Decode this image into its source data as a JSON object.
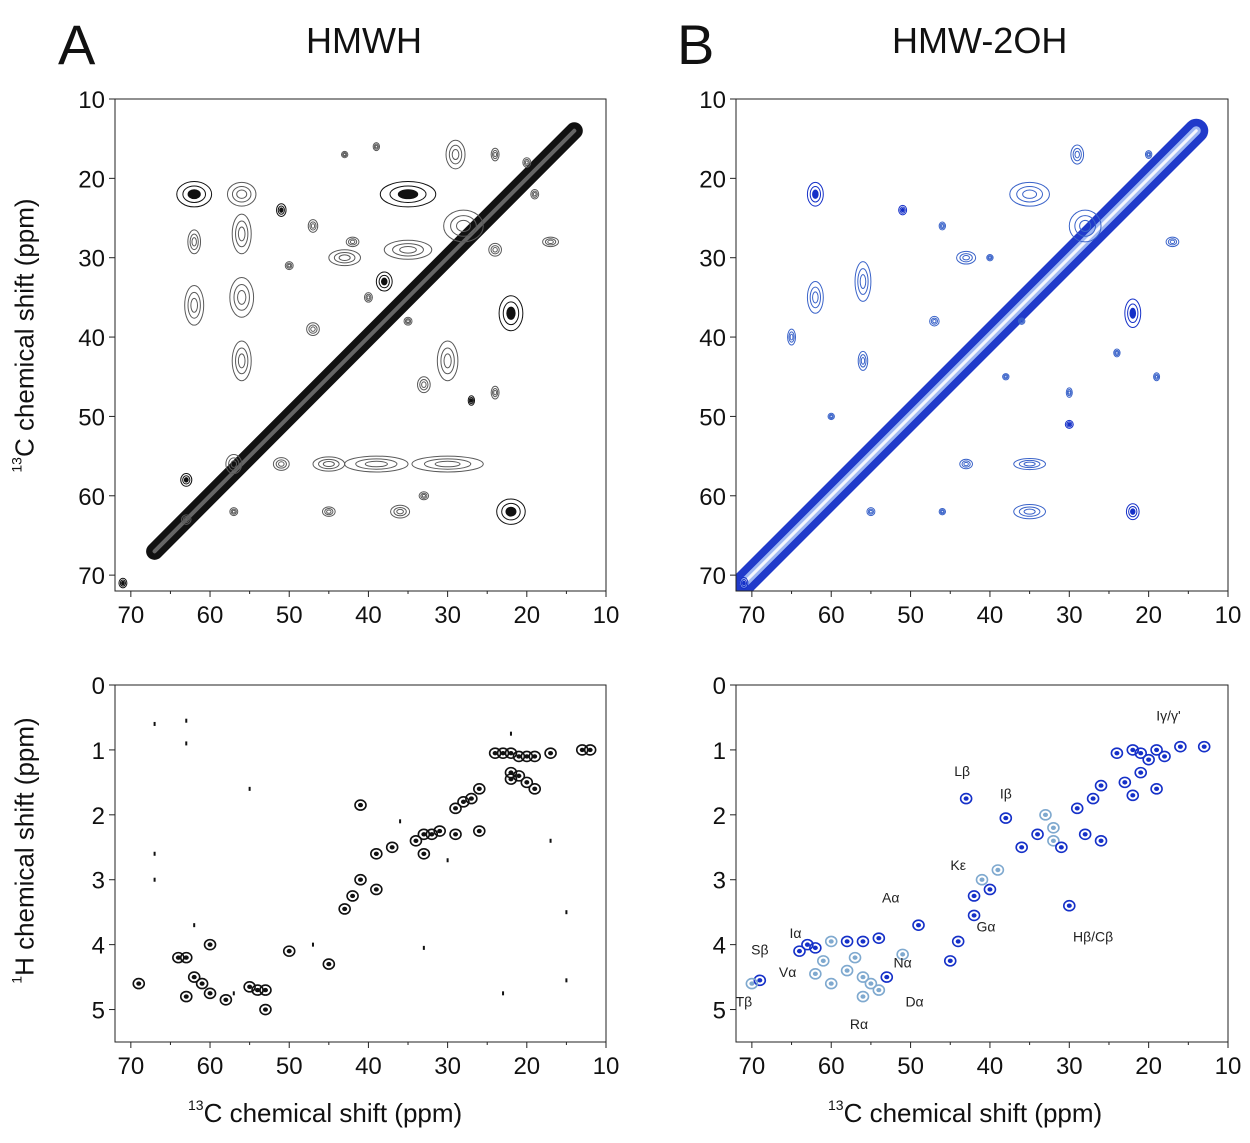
{
  "figure": {
    "panel_a": {
      "letter": "A",
      "title": "HMWH"
    },
    "panel_b": {
      "letter": "B",
      "title": "HMW-2OH"
    },
    "y_label_top": {
      "sup": "13",
      "text": "C chemical shift (ppm)"
    },
    "y_label_bottom": {
      "sup": "1",
      "text": "H chemical shift (ppm)"
    },
    "x_label_left": {
      "sup": "13",
      "text": "C chemical shift (ppm)"
    },
    "x_label_right": {
      "sup": "13",
      "text": "C chemical shift (ppm)"
    }
  },
  "colors": {
    "black": "#111111",
    "grey": "#5a5a5a",
    "blue_dark": "#1530c8",
    "blue_mid": "#3a63c9",
    "blue_light": "#7fa9cf"
  },
  "chart_data": [
    {
      "id": "cc_hmwh",
      "type": "heatmap",
      "title": "HMWH",
      "color": "black",
      "xlabel": "13C chemical shift (ppm)",
      "ylabel": "13C chemical shift (ppm)",
      "xlim": [
        72,
        10
      ],
      "ylim": [
        10,
        72
      ],
      "x_ticks": [
        70,
        60,
        50,
        40,
        30,
        20,
        10
      ],
      "y_ticks": [
        10,
        20,
        30,
        40,
        50,
        60,
        70
      ],
      "diagonal": [
        [
          67,
          67
        ],
        [
          14,
          14
        ]
      ],
      "peaks": [
        [
          62,
          22,
          2.2,
          1.6,
          0.9
        ],
        [
          56,
          22,
          1.8,
          1.5,
          0.5
        ],
        [
          56,
          27,
          1.2,
          2.5,
          0.5
        ],
        [
          56,
          35,
          1.5,
          2.5,
          0.5
        ],
        [
          56,
          43,
          1.2,
          2.5,
          0.5
        ],
        [
          62,
          36,
          1.2,
          2.5,
          0.5
        ],
        [
          62,
          28,
          0.8,
          1.5,
          0.4
        ],
        [
          51,
          24,
          0.6,
          0.8,
          0.8
        ],
        [
          35,
          22,
          3.5,
          1.6,
          0.9
        ],
        [
          35,
          29,
          3.0,
          1.2,
          0.5
        ],
        [
          29,
          17,
          1.2,
          1.8,
          0.5
        ],
        [
          28,
          26,
          2.5,
          2,
          0.6
        ],
        [
          22,
          37,
          1.5,
          2.2,
          0.8
        ],
        [
          22,
          62,
          1.8,
          1.6,
          0.9
        ],
        [
          30,
          56,
          4.5,
          1.0,
          0.5
        ],
        [
          39,
          56,
          4.0,
          1.0,
          0.5
        ],
        [
          45,
          56,
          2.0,
          0.9,
          0.5
        ],
        [
          51,
          56,
          1.0,
          0.8,
          0.6
        ],
        [
          57,
          56,
          1.0,
          1.2,
          0.5
        ],
        [
          38,
          33,
          1.0,
          1.2,
          0.8
        ],
        [
          43,
          30,
          2.0,
          1.0,
          0.5
        ],
        [
          30,
          43,
          1.3,
          2.5,
          0.5
        ],
        [
          33,
          46,
          0.8,
          1.0,
          0.5
        ],
        [
          39,
          16,
          0.4,
          0.5,
          0.6
        ],
        [
          43,
          17,
          0.4,
          0.4,
          0.6
        ],
        [
          24,
          17,
          0.5,
          0.8,
          0.6
        ],
        [
          20,
          18,
          0.5,
          0.6,
          0.6
        ],
        [
          17,
          28,
          1.0,
          0.6,
          0.5
        ],
        [
          24,
          29,
          0.8,
          0.8,
          0.5
        ],
        [
          27,
          48,
          0.4,
          0.6,
          0.8
        ],
        [
          24,
          47,
          0.5,
          0.8,
          0.6
        ],
        [
          36,
          62,
          1.2,
          0.8,
          0.5
        ],
        [
          45,
          62,
          0.8,
          0.6,
          0.5
        ],
        [
          47,
          39,
          0.8,
          0.8,
          0.5
        ],
        [
          50,
          31,
          0.5,
          0.5,
          0.5
        ],
        [
          35,
          38,
          0.5,
          0.5,
          0.5
        ],
        [
          63,
          58,
          0.7,
          0.8,
          0.8
        ],
        [
          63,
          63,
          0.6,
          0.6,
          0.7
        ],
        [
          57,
          62,
          0.5,
          0.5,
          0.6
        ],
        [
          47,
          26,
          0.6,
          0.8,
          0.6
        ],
        [
          42,
          28,
          0.8,
          0.6,
          0.6
        ],
        [
          19,
          22,
          0.5,
          0.6,
          0.5
        ],
        [
          71,
          71,
          0.5,
          0.6,
          0.8
        ],
        [
          40,
          35,
          0.5,
          0.6,
          0.5
        ],
        [
          33,
          60,
          0.6,
          0.5,
          0.5
        ]
      ]
    },
    {
      "id": "cc_hmw2oh",
      "type": "heatmap",
      "title": "HMW-2OH",
      "color": "blue",
      "xlabel": "13C chemical shift (ppm)",
      "ylabel": "13C chemical shift (ppm)",
      "xlim": [
        72,
        10
      ],
      "ylim": [
        10,
        72
      ],
      "x_ticks": [
        70,
        60,
        50,
        40,
        30,
        20,
        10
      ],
      "y_ticks": [
        10,
        20,
        30,
        40,
        50,
        60,
        70
      ],
      "diagonal": [
        [
          71,
          71
        ],
        [
          14,
          14
        ]
      ],
      "peaks": [
        [
          62,
          22,
          1.0,
          1.5,
          0.8
        ],
        [
          62,
          35,
          1.0,
          2.0,
          0.7
        ],
        [
          56,
          33,
          1.0,
          2.5,
          0.5
        ],
        [
          56,
          43,
          0.6,
          1.2,
          0.5
        ],
        [
          51,
          24,
          0.5,
          0.6,
          0.8
        ],
        [
          35,
          22,
          2.5,
          1.5,
          0.7
        ],
        [
          28,
          26,
          2.0,
          2.0,
          0.5
        ],
        [
          29,
          17,
          0.8,
          1.2,
          0.5
        ],
        [
          22,
          37,
          1.0,
          1.8,
          0.8
        ],
        [
          22,
          62,
          0.8,
          1.0,
          0.8
        ],
        [
          35,
          56,
          2.0,
          0.7,
          0.5
        ],
        [
          35,
          62,
          2.0,
          0.9,
          0.7
        ],
        [
          43,
          56,
          0.8,
          0.6,
          0.5
        ],
        [
          30,
          51,
          0.5,
          0.5,
          0.8
        ],
        [
          17,
          28,
          0.8,
          0.6,
          0.5
        ],
        [
          19,
          45,
          0.3,
          0.5,
          0.6
        ],
        [
          30,
          47,
          0.3,
          0.6,
          0.6
        ],
        [
          43,
          30,
          1.2,
          0.8,
          0.5
        ],
        [
          47,
          38,
          0.6,
          0.6,
          0.5
        ],
        [
          24,
          42,
          0.4,
          0.5,
          0.5
        ],
        [
          55,
          62,
          0.5,
          0.5,
          0.5
        ],
        [
          46,
          62,
          0.4,
          0.4,
          0.5
        ],
        [
          36,
          38,
          0.4,
          0.4,
          0.5
        ],
        [
          38,
          45,
          0.4,
          0.4,
          0.5
        ],
        [
          60,
          50,
          0.4,
          0.4,
          0.4
        ],
        [
          65,
          40,
          0.5,
          1.0,
          0.5
        ],
        [
          46,
          26,
          0.4,
          0.5,
          0.6
        ],
        [
          40,
          30,
          0.4,
          0.4,
          0.5
        ],
        [
          71,
          71,
          0.5,
          0.7,
          0.8
        ],
        [
          20,
          17,
          0.4,
          0.5,
          0.5
        ]
      ]
    },
    {
      "id": "ch_hmwh",
      "type": "heatmap",
      "color": "black",
      "xlabel": "13C chemical shift (ppm)",
      "ylabel": "1H chemical shift (ppm)",
      "xlim": [
        72,
        10
      ],
      "ylim": [
        0,
        5.5
      ],
      "x_ticks": [
        70,
        60,
        50,
        40,
        30,
        20,
        10
      ],
      "y_ticks": [
        0,
        1,
        2,
        3,
        4,
        5
      ],
      "peaks": [
        [
          69,
          4.6
        ],
        [
          64,
          4.2
        ],
        [
          63,
          4.2
        ],
        [
          60,
          4.0
        ],
        [
          62,
          4.5
        ],
        [
          61,
          4.6
        ],
        [
          63,
          4.8
        ],
        [
          60,
          4.75
        ],
        [
          58,
          4.85
        ],
        [
          55,
          4.65
        ],
        [
          54,
          4.7
        ],
        [
          53,
          4.7
        ],
        [
          53,
          5.0
        ],
        [
          50,
          4.1
        ],
        [
          45,
          4.3
        ],
        [
          43,
          3.45
        ],
        [
          42,
          3.25
        ],
        [
          41,
          3.0
        ],
        [
          39,
          3.15
        ],
        [
          41,
          1.85
        ],
        [
          39,
          2.6
        ],
        [
          37,
          2.5
        ],
        [
          34,
          2.4
        ],
        [
          33,
          2.3
        ],
        [
          33,
          2.6
        ],
        [
          32,
          2.3
        ],
        [
          31,
          2.25
        ],
        [
          29,
          1.9
        ],
        [
          29,
          2.3
        ],
        [
          28,
          1.8
        ],
        [
          27,
          1.75
        ],
        [
          26,
          1.6
        ],
        [
          26,
          2.25
        ],
        [
          24,
          1.05
        ],
        [
          23,
          1.05
        ],
        [
          22,
          1.05
        ],
        [
          21,
          1.1
        ],
        [
          20,
          1.1
        ],
        [
          19,
          1.1
        ],
        [
          17,
          1.05
        ],
        [
          13,
          1.0
        ],
        [
          12,
          1.0
        ],
        [
          21,
          1.4
        ],
        [
          20,
          1.5
        ],
        [
          19,
          1.6
        ],
        [
          22,
          1.35
        ],
        [
          22,
          1.45
        ]
      ],
      "specks": [
        [
          67,
          0.6
        ],
        [
          63,
          0.55
        ],
        [
          63,
          0.9
        ],
        [
          67,
          2.6
        ],
        [
          67,
          3.0
        ],
        [
          55,
          1.6
        ],
        [
          36,
          2.1
        ],
        [
          30,
          2.7
        ],
        [
          22,
          0.75
        ],
        [
          17,
          2.4
        ],
        [
          15,
          3.5
        ],
        [
          15,
          4.55
        ],
        [
          23,
          4.75
        ],
        [
          47,
          4.0
        ],
        [
          33,
          4.05
        ],
        [
          62,
          3.7
        ],
        [
          57,
          4.75
        ]
      ]
    },
    {
      "id": "ch_hmw2oh",
      "type": "heatmap",
      "color": "blue",
      "xlabel": "13C chemical shift (ppm)",
      "ylabel": "1H chemical shift (ppm)",
      "xlim": [
        72,
        10
      ],
      "ylim": [
        0,
        5.5
      ],
      "x_ticks": [
        70,
        60,
        50,
        40,
        30,
        20,
        10
      ],
      "y_ticks": [
        0,
        1,
        2,
        3,
        4,
        5
      ],
      "peaks": [
        [
          69,
          4.55,
          "dark"
        ],
        [
          70,
          4.6,
          "light"
        ],
        [
          64,
          4.1,
          "dark"
        ],
        [
          63,
          4.0,
          "dark"
        ],
        [
          62,
          4.05,
          "dark"
        ],
        [
          60,
          3.95,
          "light"
        ],
        [
          58,
          3.95,
          "dark"
        ],
        [
          56,
          3.95,
          "dark"
        ],
        [
          54,
          3.9,
          "dark"
        ],
        [
          61,
          4.25,
          "light"
        ],
        [
          62,
          4.45,
          "light"
        ],
        [
          60,
          4.6,
          "light"
        ],
        [
          58,
          4.4,
          "light"
        ],
        [
          56,
          4.5,
          "light"
        ],
        [
          55,
          4.6,
          "light"
        ],
        [
          54,
          4.7,
          "light"
        ],
        [
          56,
          4.8,
          "light"
        ],
        [
          57,
          4.2,
          "light"
        ],
        [
          53,
          4.5,
          "dark"
        ],
        [
          51,
          4.15,
          "light"
        ],
        [
          49,
          3.7,
          "dark"
        ],
        [
          45,
          4.25,
          "dark"
        ],
        [
          44,
          3.95,
          "dark"
        ],
        [
          42,
          3.55,
          "dark"
        ],
        [
          42,
          3.25,
          "dark"
        ],
        [
          41,
          3.0,
          "light"
        ],
        [
          39,
          2.85,
          "light"
        ],
        [
          40,
          3.15,
          "dark"
        ],
        [
          43,
          1.75,
          "dark"
        ],
        [
          38,
          2.05,
          "dark"
        ],
        [
          36,
          2.5,
          "dark"
        ],
        [
          34,
          2.3,
          "dark"
        ],
        [
          33,
          2.0,
          "light"
        ],
        [
          32,
          2.4,
          "light"
        ],
        [
          32,
          2.2,
          "light"
        ],
        [
          31,
          2.5,
          "dark"
        ],
        [
          30,
          3.4,
          "dark"
        ],
        [
          29,
          1.9,
          "dark"
        ],
        [
          28,
          2.3,
          "dark"
        ],
        [
          27,
          1.75,
          "dark"
        ],
        [
          26,
          2.4,
          "dark"
        ],
        [
          26,
          1.55,
          "dark"
        ],
        [
          24,
          1.05,
          "dark"
        ],
        [
          22,
          1.0,
          "dark"
        ],
        [
          21,
          1.05,
          "dark"
        ],
        [
          20,
          1.15,
          "dark"
        ],
        [
          19,
          1.0,
          "dark"
        ],
        [
          18,
          1.1,
          "dark"
        ],
        [
          16,
          0.95,
          "dark"
        ],
        [
          13,
          0.95,
          "dark"
        ],
        [
          21,
          1.35,
          "dark"
        ],
        [
          19,
          1.6,
          "dark"
        ],
        [
          22,
          1.7,
          "dark"
        ],
        [
          23,
          1.5,
          "dark"
        ]
      ],
      "labels": [
        {
          "text": "Iγ/γ'",
          "x": 17.5,
          "y": 0.55
        },
        {
          "text": "Lβ",
          "x": 43.5,
          "y": 1.4
        },
        {
          "text": "Iβ",
          "x": 38,
          "y": 1.75
        },
        {
          "text": "Kε",
          "x": 44,
          "y": 2.85
        },
        {
          "text": "Hβ/Cβ",
          "x": 27,
          "y": 3.95
        },
        {
          "text": "Aα",
          "x": 52.5,
          "y": 3.35
        },
        {
          "text": "Gα",
          "x": 40.5,
          "y": 3.8
        },
        {
          "text": "Nα",
          "x": 51,
          "y": 4.35
        },
        {
          "text": "Dα",
          "x": 49.5,
          "y": 4.95
        },
        {
          "text": "Rα",
          "x": 56.5,
          "y": 5.3
        },
        {
          "text": "Iα",
          "x": 64.5,
          "y": 3.9
        },
        {
          "text": "Sβ",
          "x": 69,
          "y": 4.15
        },
        {
          "text": "Vα",
          "x": 65.5,
          "y": 4.5
        },
        {
          "text": "Tβ",
          "x": 71,
          "y": 4.95
        }
      ]
    }
  ]
}
